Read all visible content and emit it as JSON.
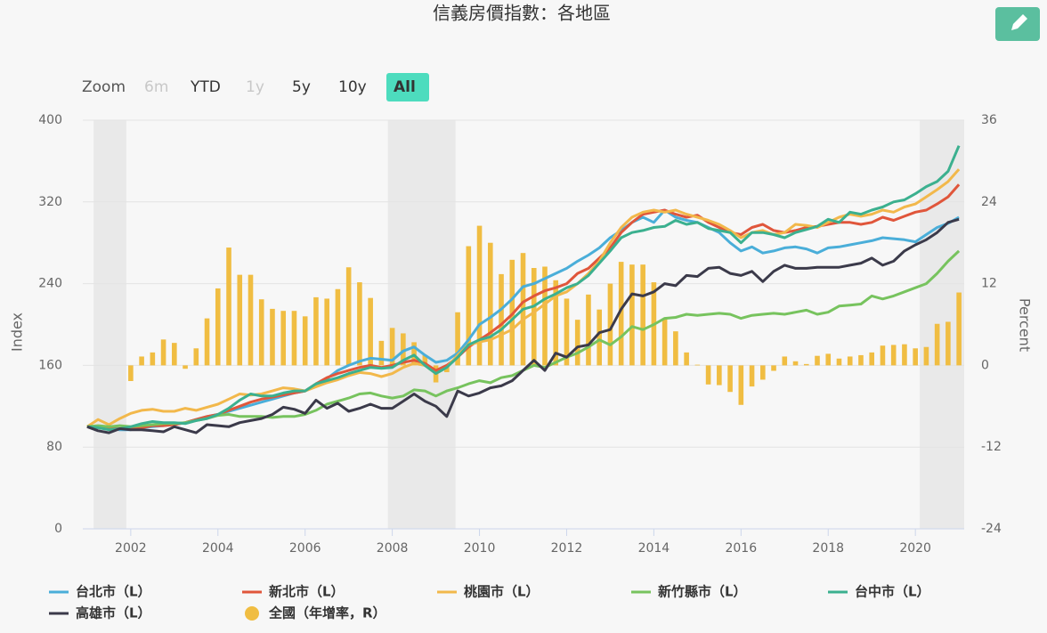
{
  "chart_data": {
    "type": "line",
    "title": "信義房價指數：各地區",
    "y_label": "Index",
    "y2_label": "Percent",
    "zoom": {
      "label": "Zoom",
      "buttons": [
        "6m",
        "YTD",
        "1y",
        "5y",
        "10y",
        "All"
      ],
      "disabled": [
        "6m",
        "1y"
      ],
      "selected": "All"
    },
    "xlim": [
      2000.9,
      2021.12
    ],
    "xticks": [
      2002,
      2004,
      2006,
      2008,
      2010,
      2012,
      2014,
      2016,
      2018,
      2020
    ],
    "ylim": [
      0,
      400
    ],
    "yticks": [
      0,
      80,
      160,
      240,
      320,
      400
    ],
    "y2lim": [
      -24,
      36
    ],
    "y2ticks": [
      -24,
      -12,
      0,
      12,
      24,
      36
    ],
    "grid": true,
    "shaded_ranges": [
      [
        2001.15,
        2001.9
      ],
      [
        2007.9,
        2009.45
      ],
      [
        2020.1,
        2021.12
      ]
    ],
    "x": [
      2001,
      2001.25,
      2001.5,
      2001.75,
      2002,
      2002.25,
      2002.5,
      2002.75,
      2003,
      2003.25,
      2003.5,
      2003.75,
      2004,
      2004.25,
      2004.5,
      2004.75,
      2005,
      2005.25,
      2005.5,
      2005.75,
      2006,
      2006.25,
      2006.5,
      2006.75,
      2007,
      2007.25,
      2007.5,
      2007.75,
      2008,
      2008.25,
      2008.5,
      2008.75,
      2009,
      2009.25,
      2009.5,
      2009.75,
      2010,
      2010.25,
      2010.5,
      2010.75,
      2011,
      2011.25,
      2011.5,
      2011.75,
      2012,
      2012.25,
      2012.5,
      2012.75,
      2013,
      2013.25,
      2013.5,
      2013.75,
      2014,
      2014.25,
      2014.5,
      2014.75,
      2015,
      2015.25,
      2015.5,
      2015.75,
      2016,
      2016.25,
      2016.5,
      2016.75,
      2017,
      2017.25,
      2017.5,
      2017.75,
      2018,
      2018.25,
      2018.5,
      2018.75,
      2019,
      2019.25,
      2019.5,
      2019.75,
      2020,
      2020.25,
      2020.5,
      2020.75,
      2021
    ],
    "series": [
      {
        "name": "台北市（L）",
        "color": "#4aaed9",
        "type": "line",
        "axis": "y",
        "values": [
          100,
          99,
          98,
          97,
          97,
          99,
          100,
          101,
          103,
          104,
          107,
          110,
          112,
          115,
          118,
          121,
          124,
          127,
          130,
          133,
          135,
          140,
          147,
          155,
          160,
          164,
          167,
          166,
          165,
          174,
          178,
          170,
          163,
          165,
          172,
          185,
          200,
          207,
          215,
          225,
          237,
          240,
          245,
          250,
          255,
          262,
          268,
          275,
          285,
          292,
          300,
          305,
          300,
          312,
          305,
          302,
          300,
          295,
          290,
          280,
          272,
          276,
          270,
          272,
          275,
          276,
          274,
          270,
          275,
          276,
          278,
          280,
          282,
          285,
          284,
          283,
          281,
          288,
          295,
          299,
          305
        ]
      },
      {
        "name": "新北市（L）",
        "color": "#e0563b",
        "type": "line",
        "axis": "y",
        "values": [
          100,
          99,
          99,
          98,
          98,
          99,
          101,
          101,
          102,
          104,
          107,
          110,
          112,
          116,
          120,
          124,
          127,
          129,
          131,
          133,
          135,
          142,
          148,
          152,
          155,
          158,
          160,
          158,
          160,
          163,
          165,
          162,
          155,
          160,
          168,
          178,
          185,
          192,
          200,
          210,
          222,
          228,
          233,
          236,
          240,
          250,
          255,
          265,
          275,
          290,
          300,
          308,
          310,
          312,
          308,
          305,
          307,
          300,
          295,
          290,
          288,
          295,
          298,
          292,
          290,
          292,
          295,
          296,
          298,
          300,
          300,
          298,
          300,
          305,
          302,
          306,
          310,
          312,
          318,
          325,
          337
        ]
      },
      {
        "name": "桃園市（L）",
        "color": "#f2b84b",
        "type": "line",
        "axis": "y",
        "values": [
          100,
          107,
          102,
          108,
          113,
          116,
          117,
          115,
          115,
          118,
          116,
          119,
          122,
          127,
          132,
          131,
          132,
          135,
          138,
          137,
          135,
          139,
          143,
          146,
          150,
          153,
          152,
          149,
          152,
          158,
          162,
          160,
          152,
          158,
          170,
          180,
          183,
          185,
          190,
          195,
          205,
          212,
          220,
          228,
          232,
          240,
          250,
          262,
          280,
          295,
          305,
          310,
          312,
          310,
          312,
          308,
          305,
          302,
          298,
          292,
          285,
          290,
          292,
          288,
          290,
          298,
          297,
          295,
          300,
          305,
          308,
          306,
          308,
          312,
          310,
          315,
          318,
          325,
          332,
          340,
          352
        ]
      },
      {
        "name": "新竹縣市（L）",
        "color": "#77c35e",
        "type": "line",
        "axis": "y",
        "values": [
          100,
          101,
          100,
          101,
          100,
          101,
          102,
          103,
          103,
          104,
          106,
          108,
          111,
          112,
          110,
          110,
          110,
          109,
          110,
          110,
          112,
          116,
          122,
          125,
          128,
          132,
          133,
          130,
          128,
          130,
          136,
          135,
          130,
          135,
          138,
          142,
          145,
          143,
          148,
          150,
          155,
          160,
          158,
          163,
          168,
          172,
          178,
          185,
          180,
          188,
          198,
          195,
          200,
          206,
          207,
          210,
          209,
          210,
          211,
          210,
          206,
          209,
          210,
          211,
          210,
          212,
          214,
          210,
          212,
          218,
          219,
          220,
          228,
          225,
          228,
          232,
          236,
          240,
          250,
          262,
          272
        ]
      },
      {
        "name": "台中市（L）",
        "color": "#3bb08f",
        "type": "line",
        "axis": "y",
        "values": [
          100,
          99,
          97,
          98,
          100,
          103,
          105,
          104,
          104,
          103,
          106,
          108,
          112,
          118,
          126,
          132,
          130,
          130,
          133,
          135,
          135,
          142,
          145,
          148,
          152,
          155,
          158,
          157,
          158,
          165,
          170,
          160,
          152,
          158,
          168,
          180,
          185,
          188,
          195,
          205,
          215,
          218,
          225,
          230,
          236,
          240,
          248,
          260,
          272,
          285,
          290,
          292,
          295,
          296,
          302,
          298,
          300,
          294,
          292,
          290,
          280,
          290,
          290,
          288,
          285,
          290,
          293,
          296,
          303,
          300,
          310,
          308,
          312,
          315,
          320,
          322,
          328,
          335,
          340,
          350,
          375
        ]
      },
      {
        "name": "高雄市（L）",
        "color": "#3b3a4a",
        "type": "line",
        "axis": "y",
        "values": [
          100,
          96,
          94,
          98,
          97,
          97,
          96,
          95,
          100,
          97,
          94,
          102,
          101,
          100,
          104,
          106,
          108,
          112,
          119,
          117,
          113,
          126,
          118,
          123,
          115,
          118,
          122,
          118,
          118,
          125,
          132,
          125,
          120,
          110,
          135,
          130,
          133,
          138,
          140,
          145,
          155,
          165,
          155,
          172,
          168,
          178,
          180,
          192,
          195,
          215,
          230,
          228,
          232,
          240,
          238,
          248,
          247,
          255,
          256,
          250,
          248,
          252,
          242,
          252,
          258,
          255,
          255,
          256,
          256,
          256,
          258,
          260,
          265,
          258,
          262,
          272,
          278,
          283,
          290,
          300,
          303
        ]
      },
      {
        "name": "全國（年增率，R）",
        "color": "#f0bd42",
        "type": "bar",
        "axis": "y2",
        "values": [
          null,
          null,
          null,
          null,
          -2.3,
          1.3,
          1.9,
          3.8,
          3.3,
          -0.5,
          2.5,
          6.9,
          11.3,
          17.3,
          13.3,
          13.3,
          9.7,
          8.3,
          8.0,
          8.0,
          7.2,
          10.0,
          9.8,
          11.2,
          14.4,
          12.2,
          9.9,
          3.6,
          5.5,
          4.7,
          3.4,
          1.5,
          -2.5,
          -1.0,
          7.8,
          17.5,
          20.5,
          18.0,
          13.4,
          15.5,
          16.5,
          14.3,
          14.5,
          12.5,
          9.8,
          6.7,
          10.4,
          8.2,
          12.0,
          15.2,
          14.8,
          14.8,
          12.2,
          6.8,
          5.0,
          1.9,
          0.1,
          -2.8,
          -2.9,
          -3.9,
          -5.8,
          -3.1,
          -2.1,
          -0.8,
          1.3,
          0.6,
          0.2,
          1.4,
          1.7,
          1.0,
          1.3,
          1.5,
          1.9,
          2.9,
          3.0,
          3.1,
          2.5,
          2.7,
          6.1,
          6.4,
          10.7
        ]
      }
    ]
  }
}
